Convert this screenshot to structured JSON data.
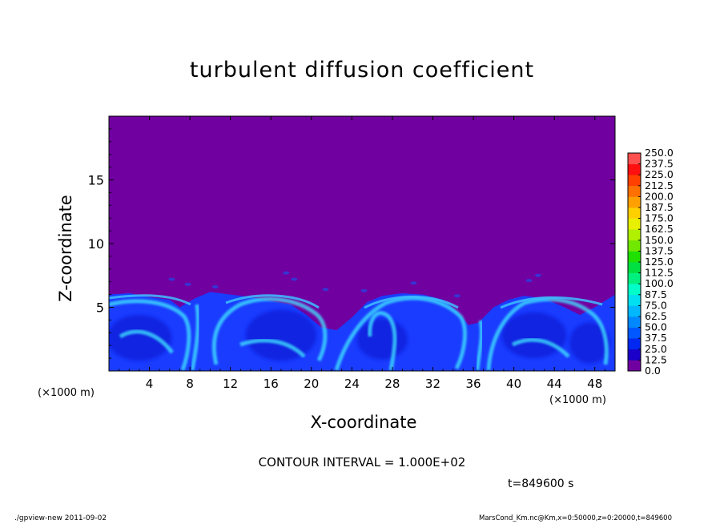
{
  "chart_data": {
    "type": "heatmap",
    "title": "turbulent diffusion coefficient",
    "xlabel": "X-coordinate",
    "ylabel": "Z-coordinate",
    "x_unit_label": "(×1000 m)",
    "x_ticks": [
      4,
      8,
      12,
      16,
      20,
      24,
      28,
      32,
      36,
      40,
      44,
      48
    ],
    "y_ticks": [
      5,
      10,
      15
    ],
    "xlim": [
      0,
      50
    ],
    "ylim": [
      0,
      20
    ],
    "contour_interval_text": "CONTOUR INTERVAL = 1.000E+02",
    "time_text": "t=849600 s",
    "background_level": 0.0,
    "turbulent_layer_top_km": 6.2,
    "colorbar": {
      "levels": [
        "0.0",
        "12.5",
        "25.0",
        "37.5",
        "50.0",
        "62.5",
        "75.0",
        "87.5",
        "100.0",
        "112.5",
        "125.0",
        "137.5",
        "150.0",
        "162.5",
        "175.0",
        "187.5",
        "200.0",
        "212.5",
        "225.0",
        "237.5",
        "250.0"
      ],
      "colors": [
        "#7000a0",
        "#1a00c8",
        "#0028f0",
        "#0058ff",
        "#0088ff",
        "#00b8ff",
        "#00e0f0",
        "#00ffc8",
        "#00f080",
        "#00e040",
        "#20e000",
        "#70e800",
        "#b0f000",
        "#e8f000",
        "#ffd000",
        "#ffa000",
        "#ff7000",
        "#ff4000",
        "#ff1010",
        "#ff5050",
        "#ff9090"
      ]
    },
    "grid": false
  },
  "footer": {
    "left": "./gpview-new  2011-09-02",
    "right": "MarsCond_Km.nc@Km,x=0:50000,z=0:20000,t=849600"
  },
  "colors": {
    "background_field": "#7000a0",
    "turbulent_low": "#1a3cff",
    "turbulent_high": "#40e8ff"
  }
}
